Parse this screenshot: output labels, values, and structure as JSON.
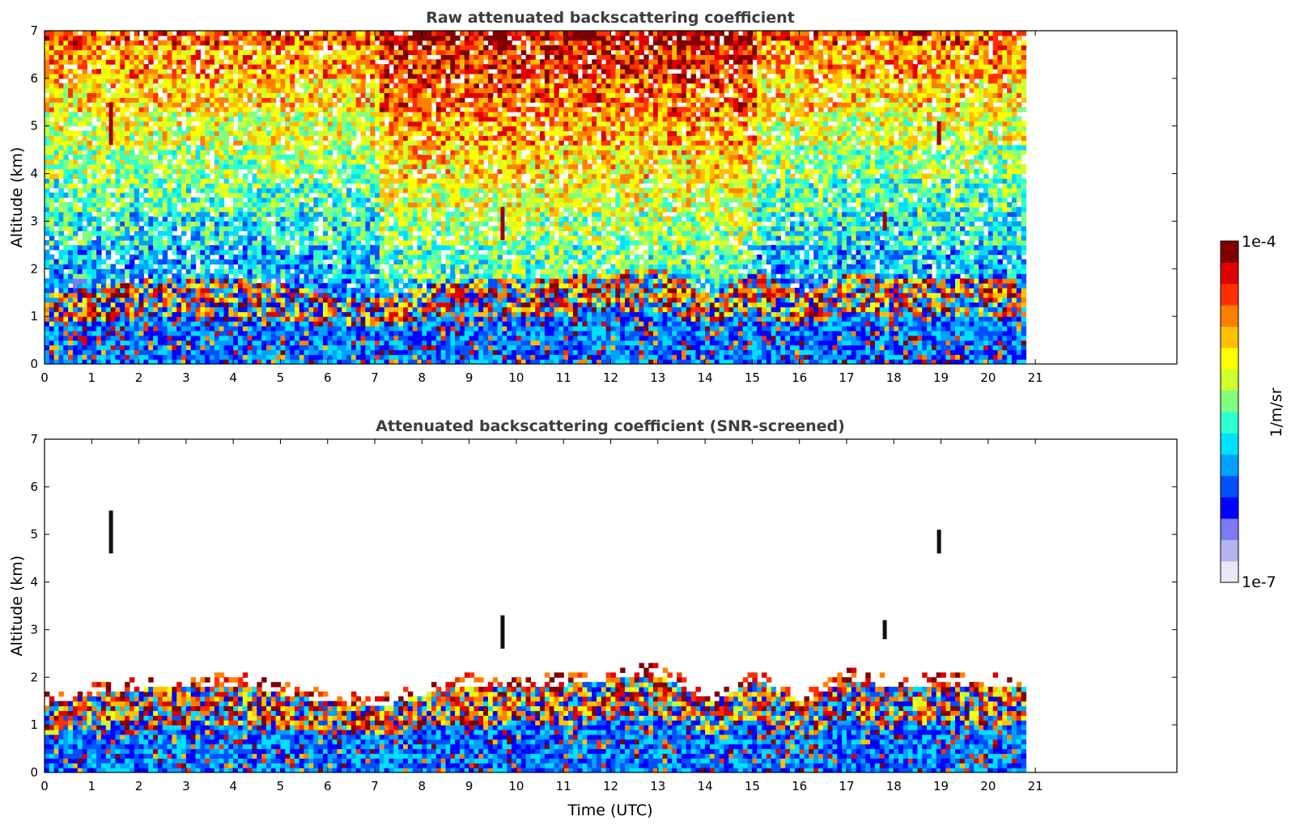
{
  "chart_data": [
    {
      "type": "heatmap",
      "title": "Raw attenuated backscattering coefficient",
      "ylabel": "Altitude (km)",
      "xlabel": "",
      "xlim": [
        0,
        24
      ],
      "ylim": [
        0,
        7
      ],
      "x_ticks": [
        0,
        1,
        2,
        3,
        4,
        5,
        6,
        7,
        8,
        9,
        10,
        11,
        12,
        13,
        14,
        15,
        16,
        17,
        18,
        19,
        20,
        21
      ],
      "y_ticks": [
        0,
        1,
        2,
        3,
        4,
        5,
        6,
        7
      ],
      "data_time_range": [
        0,
        20.8
      ],
      "colorscale": "jet",
      "log_scale": true,
      "boundary_layer_top_km": [
        [
          0,
          1.4
        ],
        [
          1,
          1.6
        ],
        [
          2,
          1.7
        ],
        [
          3,
          1.8
        ],
        [
          4,
          1.8
        ],
        [
          5,
          1.6
        ],
        [
          6,
          1.4
        ],
        [
          7,
          1.3
        ],
        [
          8,
          1.6
        ],
        [
          9,
          1.8
        ],
        [
          10,
          1.7
        ],
        [
          11,
          1.8
        ],
        [
          12,
          1.9
        ],
        [
          13,
          2.0
        ],
        [
          14,
          1.4
        ],
        [
          15,
          1.9
        ],
        [
          16,
          1.4
        ],
        [
          17,
          1.9
        ],
        [
          18,
          1.7
        ],
        [
          19,
          1.8
        ],
        [
          20,
          1.8
        ],
        [
          20.8,
          1.7
        ]
      ],
      "cloud_features": [
        {
          "x": 1.4,
          "y_range": [
            4.6,
            5.5
          ]
        },
        {
          "x": 9.7,
          "y_range": [
            2.6,
            3.3
          ]
        },
        {
          "x": 18.95,
          "y_range": [
            4.6,
            5.1
          ]
        },
        {
          "x": 17.8,
          "y_range": [
            2.8,
            3.2
          ]
        }
      ]
    },
    {
      "type": "heatmap",
      "title": "Attenuated backscattering coefficient (SNR-screened)",
      "ylabel": "Altitude (km)",
      "xlabel": "Time (UTC)",
      "xlim": [
        0,
        24
      ],
      "ylim": [
        0,
        7
      ],
      "x_ticks": [
        0,
        1,
        2,
        3,
        4,
        5,
        6,
        7,
        8,
        9,
        10,
        11,
        12,
        13,
        14,
        15,
        16,
        17,
        18,
        19,
        20,
        21
      ],
      "y_ticks": [
        0,
        1,
        2,
        3,
        4,
        5,
        6,
        7
      ],
      "data_time_range": [
        0,
        20.8
      ],
      "colorscale": "jet",
      "log_scale": true,
      "boundary_layer_top_km": [
        [
          0,
          1.4
        ],
        [
          1,
          1.6
        ],
        [
          2,
          1.7
        ],
        [
          3,
          1.8
        ],
        [
          4,
          1.8
        ],
        [
          5,
          1.6
        ],
        [
          6,
          1.4
        ],
        [
          7,
          1.3
        ],
        [
          8,
          1.6
        ],
        [
          9,
          1.8
        ],
        [
          10,
          1.7
        ],
        [
          11,
          1.8
        ],
        [
          12,
          1.9
        ],
        [
          13,
          2.0
        ],
        [
          14,
          1.4
        ],
        [
          15,
          1.9
        ],
        [
          16,
          1.4
        ],
        [
          17,
          1.9
        ],
        [
          18,
          1.7
        ],
        [
          19,
          1.8
        ],
        [
          20,
          1.8
        ],
        [
          20.8,
          1.7
        ]
      ],
      "cloud_features": [
        {
          "x": 1.4,
          "y_range": [
            4.6,
            5.5
          ]
        },
        {
          "x": 9.7,
          "y_range": [
            2.6,
            3.3
          ]
        },
        {
          "x": 18.95,
          "y_range": [
            4.6,
            5.1
          ]
        },
        {
          "x": 17.8,
          "y_range": [
            2.8,
            3.2
          ]
        }
      ]
    }
  ],
  "colorbar": {
    "label": "1/m/sr",
    "max_label": "1e-4",
    "min_label": "1e-7",
    "range": [
      1e-07,
      0.0001
    ],
    "colors": [
      "#e8e8f8",
      "#b4b4f0",
      "#7b7bf4",
      "#0000ff",
      "#0050ff",
      "#00a0ff",
      "#00e0ff",
      "#30ffd0",
      "#80ff80",
      "#d0ff30",
      "#ffff00",
      "#ffc000",
      "#ff8000",
      "#ff3000",
      "#e00000",
      "#800000"
    ]
  }
}
